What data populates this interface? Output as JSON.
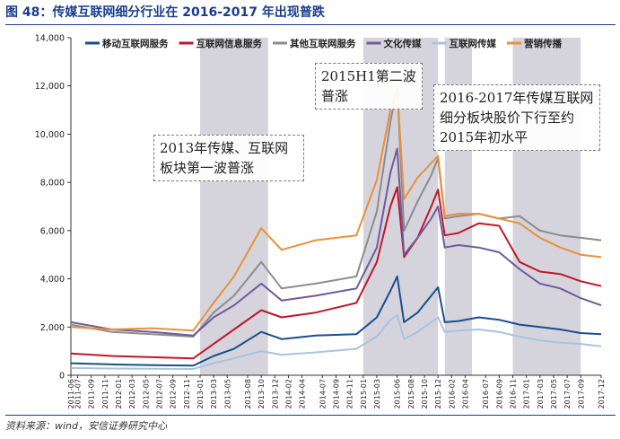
{
  "title": "图 48：传媒互联网细分行业在 2016-2017 年出现普跌",
  "source": "资料来源：wind，安信证券研究中心",
  "colors": {
    "title": "#1a3d8f",
    "shade": "#d5d4dc",
    "series": [
      "#1b4e8c",
      "#c0172a",
      "#8c8c8c",
      "#6f5a9e",
      "#a9c2df",
      "#e8913a"
    ]
  },
  "annotations": [
    "2013年传媒、互联网板块第一波普涨",
    "2015H1第二波普涨",
    "2016-2017年传媒互联网细分板块股价下行至约2015年初水平"
  ],
  "chart_data": {
    "type": "line",
    "title": "",
    "xlabel": "",
    "ylabel": "",
    "ylim": [
      0,
      14000
    ],
    "y_ticks": [
      "0",
      "2,000",
      "4,000",
      "6,000",
      "8,000",
      "10,000",
      "12,000",
      "14,000"
    ],
    "y_tick_values": [
      0,
      2000,
      4000,
      6000,
      8000,
      10000,
      12000,
      14000
    ],
    "x_range": [
      "2011-06",
      "2017-12"
    ],
    "x_ticks": [
      "2011-06",
      "2011-07",
      "2011-09",
      "2011-11",
      "2012-01",
      "2012-03",
      "2012-05",
      "2012-07",
      "2012-09",
      "2012-11",
      "2013-01",
      "2013-03",
      "2013-05",
      "2013-08",
      "2013-10",
      "2013-12",
      "2014-02",
      "2014-04",
      "2014-07",
      "2014-09",
      "2014-11",
      "2015-01",
      "2015-03",
      "2015-06",
      "2015-08",
      "2015-10",
      "2015-12",
      "2016-02",
      "2016-04",
      "2016-07",
      "2016-09",
      "2016-11",
      "2017-01",
      "2017-03",
      "2017-05",
      "2017-07",
      "2017-09",
      "2017-12"
    ],
    "shaded_periods": [
      [
        "2013-01",
        "2013-11"
      ],
      [
        "2015-01",
        "2015-12"
      ],
      [
        "2016-01",
        "2016-05"
      ],
      [
        "2016-11",
        "2017-09"
      ]
    ],
    "legend_position": "top",
    "series": [
      {
        "name": "移动互联网服务",
        "x": [
          "2011-06",
          "2011-12",
          "2012-06",
          "2012-12",
          "2013-03",
          "2013-06",
          "2013-10",
          "2014-01",
          "2014-06",
          "2014-12",
          "2015-03",
          "2015-05",
          "2015-06",
          "2015-07",
          "2015-09",
          "2015-11",
          "2015-12",
          "2016-01",
          "2016-03",
          "2016-06",
          "2016-09",
          "2016-12",
          "2017-03",
          "2017-06",
          "2017-09",
          "2017-12"
        ],
        "values": [
          500,
          450,
          420,
          400,
          800,
          1100,
          1800,
          1500,
          1650,
          1700,
          2400,
          3500,
          4100,
          2200,
          2600,
          3300,
          3650,
          2200,
          2250,
          2400,
          2300,
          2100,
          2000,
          1900,
          1750,
          1700
        ]
      },
      {
        "name": "互联网信息服务",
        "x": [
          "2011-06",
          "2011-12",
          "2012-06",
          "2012-12",
          "2013-03",
          "2013-06",
          "2013-10",
          "2014-01",
          "2014-06",
          "2014-12",
          "2015-03",
          "2015-05",
          "2015-06",
          "2015-07",
          "2015-09",
          "2015-11",
          "2015-12",
          "2016-01",
          "2016-03",
          "2016-06",
          "2016-09",
          "2016-12",
          "2017-03",
          "2017-06",
          "2017-09",
          "2017-12"
        ],
        "values": [
          900,
          800,
          750,
          700,
          1300,
          1900,
          2700,
          2400,
          2600,
          3000,
          4700,
          7000,
          7800,
          4900,
          5700,
          7000,
          7700,
          5800,
          5900,
          6300,
          6200,
          4700,
          4300,
          4200,
          3900,
          3700
        ]
      },
      {
        "name": "其他互联网服务",
        "x": [
          "2011-06",
          "2011-12",
          "2012-06",
          "2012-12",
          "2013-03",
          "2013-06",
          "2013-10",
          "2014-01",
          "2014-06",
          "2014-12",
          "2015-03",
          "2015-05",
          "2015-06",
          "2015-07",
          "2015-09",
          "2015-11",
          "2015-12",
          "2016-01",
          "2016-03",
          "2016-06",
          "2016-09",
          "2016-12",
          "2017-03",
          "2017-06",
          "2017-09",
          "2017-12"
        ],
        "values": [
          2100,
          1800,
          1700,
          1600,
          2600,
          3300,
          4700,
          3600,
          3800,
          4100,
          6800,
          10500,
          12000,
          6000,
          7200,
          8300,
          9000,
          6500,
          6600,
          6700,
          6500,
          6600,
          6000,
          5800,
          5700,
          5600
        ]
      },
      {
        "name": "文化传媒",
        "x": [
          "2011-06",
          "2011-12",
          "2012-06",
          "2012-12",
          "2013-03",
          "2013-06",
          "2013-10",
          "2014-01",
          "2014-06",
          "2014-12",
          "2015-03",
          "2015-05",
          "2015-06",
          "2015-07",
          "2015-09",
          "2015-11",
          "2015-12",
          "2016-01",
          "2016-03",
          "2016-06",
          "2016-09",
          "2016-12",
          "2017-03",
          "2017-06",
          "2017-09",
          "2017-12"
        ],
        "values": [
          2200,
          1900,
          1800,
          1650,
          2400,
          2900,
          3800,
          3100,
          3300,
          3600,
          5300,
          8400,
          9400,
          5000,
          5700,
          6500,
          7000,
          5300,
          5400,
          5300,
          5100,
          4400,
          3800,
          3600,
          3200,
          2900
        ]
      },
      {
        "name": "互联网传媒",
        "x": [
          "2011-06",
          "2011-12",
          "2012-06",
          "2012-12",
          "2013-03",
          "2013-06",
          "2013-10",
          "2014-01",
          "2014-06",
          "2014-12",
          "2015-03",
          "2015-05",
          "2015-06",
          "2015-07",
          "2015-09",
          "2015-11",
          "2015-12",
          "2016-01",
          "2016-03",
          "2016-06",
          "2016-09",
          "2016-12",
          "2017-03",
          "2017-06",
          "2017-09",
          "2017-12"
        ],
        "values": [
          300,
          280,
          270,
          260,
          500,
          700,
          1000,
          850,
          950,
          1100,
          1600,
          2300,
          2500,
          1500,
          1800,
          2200,
          2400,
          1800,
          1850,
          1900,
          1800,
          1600,
          1450,
          1350,
          1300,
          1200
        ]
      },
      {
        "name": "营销传播",
        "x": [
          "2011-06",
          "2011-12",
          "2012-06",
          "2012-12",
          "2013-03",
          "2013-06",
          "2013-10",
          "2014-01",
          "2014-06",
          "2014-12",
          "2015-03",
          "2015-05",
          "2015-06",
          "2015-07",
          "2015-09",
          "2015-11",
          "2015-12",
          "2016-01",
          "2016-03",
          "2016-06",
          "2016-09",
          "2016-12",
          "2017-03",
          "2017-06",
          "2017-09",
          "2017-12"
        ],
        "values": [
          2000,
          1900,
          1950,
          1850,
          3000,
          4100,
          6100,
          5200,
          5600,
          5800,
          8100,
          11000,
          11900,
          7300,
          8200,
          8800,
          9100,
          6600,
          6700,
          6700,
          6500,
          6300,
          5700,
          5300,
          5000,
          4900
        ]
      }
    ]
  }
}
